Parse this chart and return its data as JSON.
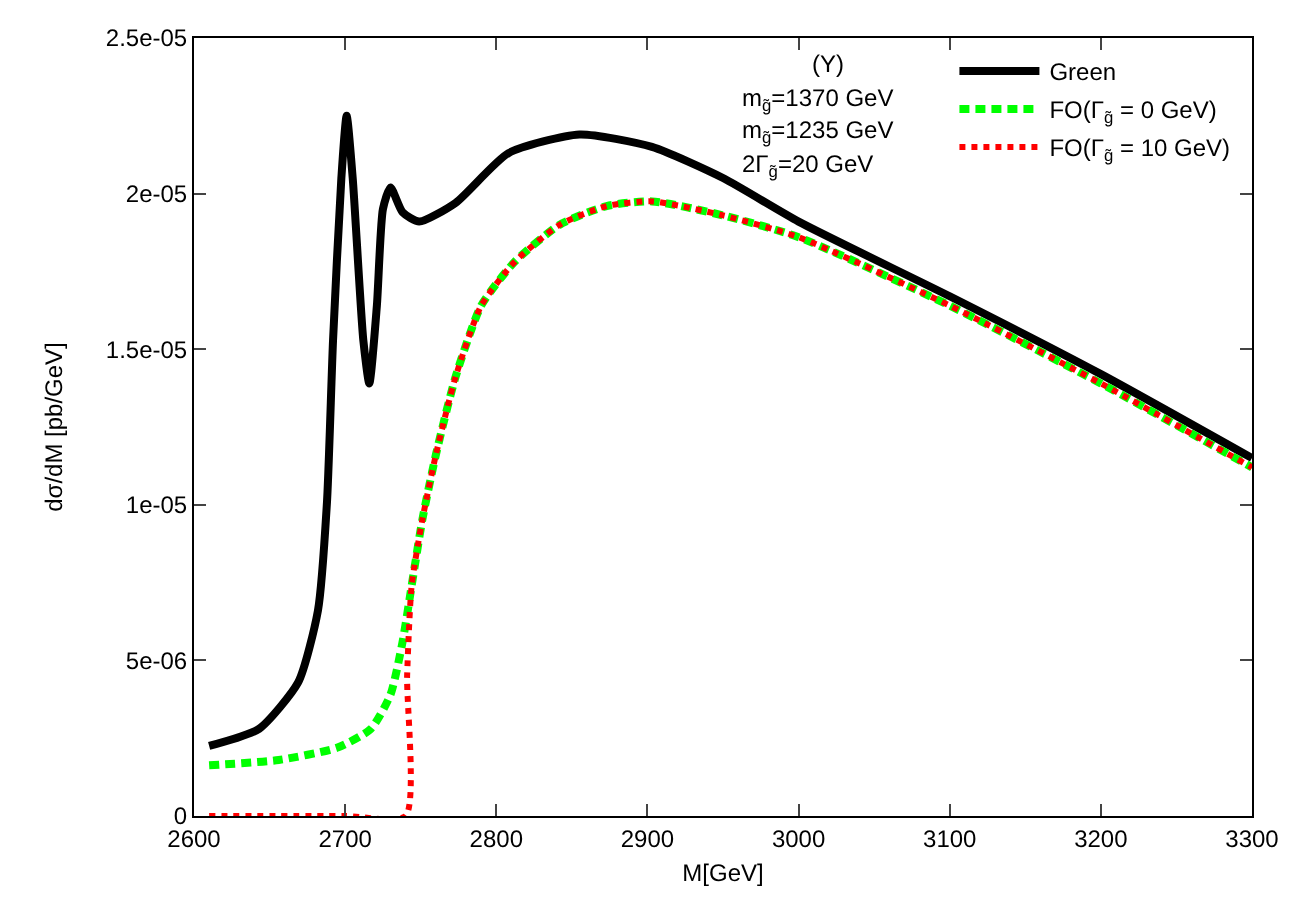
{
  "chart_data": {
    "type": "line",
    "xlabel": "M[GeV]",
    "ylabel": "dσ/dM [pb/GeV]",
    "annotations": [
      "(Y)",
      "m$_{g̃}$=1370 GeV",
      "m$_{g̃}$=1235 GeV",
      "2Γ$_{g̃}$=20 GeV"
    ],
    "xlim": [
      2600,
      3300
    ],
    "xticks": [
      2600,
      2700,
      2800,
      2900,
      3000,
      3100,
      3200,
      3300
    ],
    "ylim": [
      0,
      2.5e-05
    ],
    "yticks": [
      0,
      {
        "value": 5e-06,
        "label": "5e-06"
      },
      {
        "value": 1e-05,
        "label": "1e-05"
      },
      {
        "value": 1.5e-05,
        "label": "1.5e-05"
      },
      {
        "value": 2e-05,
        "label": "2e-05"
      },
      {
        "value": 2.5e-05,
        "label": "2.5e-05"
      }
    ],
    "legend": "top right",
    "marker": "none",
    "series": [
      {
        "name": "Green",
        "color": "#000000",
        "line_style": "solid",
        "x": [
          2610,
          2643,
          2669,
          2682,
          2688,
          2692,
          2697.5,
          2701,
          2705,
          2712,
          2716,
          2721,
          2725,
          2730,
          2738,
          2749,
          2773,
          2808,
          2855,
          2903,
          2950,
          3000,
          3100,
          3200,
          3300
        ],
        "values": [
          2.25e-06,
          2.8e-06,
          4.3e-06,
          6.6e-06,
          1.01e-05,
          1.53e-05,
          2.05e-05,
          2.25e-05,
          2.05e-05,
          1.53e-05,
          1.39e-05,
          1.64e-05,
          1.95e-05,
          2.02e-05,
          1.94e-05,
          1.91e-05,
          1.97e-05,
          2.13e-05,
          2.19e-05,
          2.15e-05,
          2.05e-05,
          1.91e-05,
          1.67e-05,
          1.42e-05,
          1.15e-05
        ]
      },
      {
        "name": "FO(Γ$_{g̃}$ = 0 GeV)",
        "color": "#00ff00",
        "line_style": "dashed",
        "x": [
          2610,
          2656,
          2695,
          2717,
          2730,
          2738,
          2744,
          2751,
          2760,
          2773,
          2790,
          2812,
          2842,
          2873,
          2903,
          2950,
          3000,
          3100,
          3200,
          3300
        ],
        "values": [
          1.63e-06,
          1.8e-06,
          2.2e-06,
          2.8e-06,
          3.9e-06,
          5.6e-06,
          7.4e-06,
          9.5e-06,
          1.16e-05,
          1.41e-05,
          1.64e-05,
          1.78e-05,
          1.9e-05,
          1.96e-05,
          1.975e-05,
          1.93e-05,
          1.86e-05,
          1.64e-05,
          1.39e-05,
          1.12e-05
        ]
      },
      {
        "name": "FO(Γ$_{g̃}$ = 10 GeV)",
        "color": "#ff0000",
        "line_style": "dotted",
        "x": [
          2610,
          2700,
          2740,
          2741,
          2744,
          2751,
          2760,
          2773,
          2790,
          2812,
          2842,
          2873,
          2903,
          2950,
          3000,
          3100,
          3200,
          3300
        ],
        "values": [
          0,
          0,
          0,
          4.5e-06,
          7.4e-06,
          9.5e-06,
          1.16e-05,
          1.41e-05,
          1.64e-05,
          1.78e-05,
          1.9e-05,
          1.96e-05,
          1.975e-05,
          1.93e-05,
          1.86e-05,
          1.64e-05,
          1.39e-05,
          1.12e-05
        ]
      }
    ]
  }
}
